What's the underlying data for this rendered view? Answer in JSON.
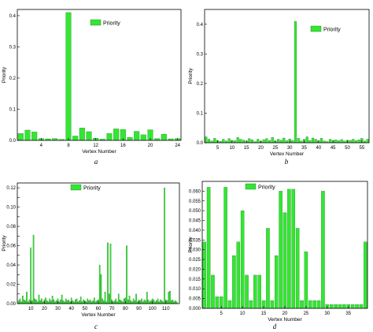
{
  "colors": {
    "bar_fill": "#33e633",
    "bar_stroke": "#1f7a1f",
    "axis": "#000000"
  },
  "chart_data": [
    {
      "id": "a",
      "type": "bar",
      "caption": "a",
      "xlabel": "Vertex Number",
      "ylabel": "Priority",
      "legend": {
        "label": "Priority",
        "placement": "top-right"
      },
      "xlim": [
        0.5,
        24.5
      ],
      "ylim": [
        0,
        0.42
      ],
      "xticks": [
        4,
        8,
        12,
        16,
        20,
        24
      ],
      "yticks": [
        0.0,
        0.1,
        0.2,
        0.3,
        0.4
      ],
      "ytick_labels": [
        "0.0",
        "0.1",
        "0.2",
        "0.3",
        "0.4"
      ],
      "x": [
        1,
        2,
        3,
        4,
        5,
        6,
        7,
        8,
        9,
        10,
        11,
        12,
        13,
        14,
        15,
        16,
        17,
        18,
        19,
        20,
        21,
        22,
        23,
        24
      ],
      "values": [
        0.022,
        0.033,
        0.027,
        0.006,
        0.005,
        0.006,
        0.003,
        0.41,
        0.014,
        0.04,
        0.028,
        0.007,
        0.004,
        0.022,
        0.037,
        0.035,
        0.01,
        0.029,
        0.018,
        0.034,
        0.006,
        0.02,
        0.005,
        0.006
      ]
    },
    {
      "id": "b",
      "type": "bar",
      "caption": "b",
      "xlabel": "Vertex Number",
      "ylabel": "Priority",
      "legend": {
        "label": "Priority",
        "placement": "top-right"
      },
      "xlim": [
        0.5,
        57.5
      ],
      "ylim": [
        0,
        0.45
      ],
      "xticks": [
        5,
        10,
        15,
        20,
        25,
        30,
        35,
        40,
        45,
        50,
        55
      ],
      "yticks": [
        0.0,
        0.1,
        0.2,
        0.3,
        0.4
      ],
      "ytick_labels": [
        "0.0",
        "0.1",
        "0.2",
        "0.3",
        "0.4"
      ],
      "x": [
        1,
        2,
        3,
        4,
        5,
        6,
        7,
        8,
        9,
        10,
        11,
        12,
        13,
        14,
        15,
        16,
        17,
        18,
        19,
        20,
        21,
        22,
        23,
        24,
        25,
        26,
        27,
        28,
        29,
        30,
        31,
        32,
        33,
        34,
        35,
        36,
        37,
        38,
        39,
        40,
        41,
        42,
        43,
        44,
        45,
        46,
        47,
        48,
        49,
        50,
        51,
        52,
        53,
        54,
        55,
        56,
        57
      ],
      "values": [
        0.02,
        0.012,
        0.006,
        0.015,
        0.008,
        0.005,
        0.012,
        0.006,
        0.014,
        0.008,
        0.007,
        0.018,
        0.012,
        0.009,
        0.006,
        0.014,
        0.01,
        0.004,
        0.012,
        0.005,
        0.01,
        0.014,
        0.008,
        0.018,
        0.006,
        0.012,
        0.009,
        0.016,
        0.007,
        0.013,
        0.008,
        0.41,
        0.015,
        0.006,
        0.012,
        0.02,
        0.008,
        0.016,
        0.012,
        0.007,
        0.015,
        0.006,
        0.004,
        0.012,
        0.008,
        0.01,
        0.007,
        0.011,
        0.006,
        0.009,
        0.008,
        0.012,
        0.007,
        0.01,
        0.015,
        0.006,
        0.012
      ]
    },
    {
      "id": "c",
      "type": "bar",
      "caption": "c",
      "xlabel": "Vertex Number",
      "ylabel": "Priority",
      "legend": {
        "label": "Priority",
        "placement": "top-left"
      },
      "xlim": [
        0,
        120
      ],
      "ylim": [
        0,
        0.125
      ],
      "xticks": [
        10,
        20,
        30,
        40,
        50,
        60,
        70,
        80,
        90,
        100,
        110
      ],
      "yticks": [
        0.0,
        0.01,
        0.02,
        0.03,
        0.04,
        0.05,
        0.06,
        0.07,
        0.08,
        0.09,
        0.1,
        0.11,
        0.12
      ],
      "ytick_labels": [
        "0.00",
        "",
        "0.02",
        "",
        "0.04",
        "",
        "0.06",
        "",
        "0.08",
        "",
        "0.10",
        "",
        "0.12"
      ],
      "x": [
        1,
        2,
        3,
        4,
        5,
        6,
        7,
        8,
        9,
        10,
        11,
        12,
        13,
        14,
        15,
        16,
        17,
        18,
        19,
        20,
        21,
        22,
        23,
        24,
        25,
        26,
        27,
        28,
        29,
        30,
        31,
        32,
        33,
        34,
        35,
        36,
        37,
        38,
        39,
        40,
        41,
        42,
        43,
        44,
        45,
        46,
        47,
        48,
        49,
        50,
        51,
        52,
        53,
        54,
        55,
        56,
        57,
        58,
        59,
        60,
        61,
        62,
        63,
        64,
        65,
        66,
        67,
        68,
        69,
        70,
        71,
        72,
        73,
        74,
        75,
        76,
        77,
        78,
        79,
        80,
        81,
        82,
        83,
        84,
        85,
        86,
        87,
        88,
        89,
        90,
        91,
        92,
        93,
        94,
        95,
        96,
        97,
        98,
        99,
        100,
        101,
        102,
        103,
        104,
        105,
        106,
        107,
        108,
        109,
        110,
        111,
        112,
        113,
        114,
        115,
        116,
        117,
        118
      ],
      "values": [
        0.003,
        0.005,
        0.002,
        0.008,
        0.004,
        0.003,
        0.012,
        0.002,
        0.004,
        0.058,
        0.003,
        0.071,
        0.005,
        0.004,
        0.002,
        0.009,
        0.003,
        0.005,
        0.002,
        0.004,
        0.006,
        0.003,
        0.002,
        0.005,
        0.003,
        0.008,
        0.004,
        0.002,
        0.003,
        0.005,
        0.002,
        0.004,
        0.009,
        0.003,
        0.002,
        0.005,
        0.003,
        0.004,
        0.002,
        0.006,
        0.003,
        0.002,
        0.004,
        0.005,
        0.002,
        0.003,
        0.007,
        0.002,
        0.004,
        0.003,
        0.002,
        0.005,
        0.003,
        0.004,
        0.002,
        0.003,
        0.006,
        0.002,
        0.003,
        0.004,
        0.04,
        0.03,
        0.005,
        0.003,
        0.012,
        0.002,
        0.063,
        0.01,
        0.062,
        0.004,
        0.002,
        0.003,
        0.005,
        0.002,
        0.01,
        0.004,
        0.003,
        0.002,
        0.005,
        0.006,
        0.06,
        0.004,
        0.008,
        0.003,
        0.002,
        0.005,
        0.003,
        0.01,
        0.002,
        0.004,
        0.003,
        0.005,
        0.002,
        0.004,
        0.003,
        0.012,
        0.004,
        0.002,
        0.003,
        0.005,
        0.004,
        0.002,
        0.003,
        0.005,
        0.002,
        0.004,
        0.003,
        0.002,
        0.12,
        0.004,
        0.003,
        0.012,
        0.013,
        0.003,
        0.004,
        0.002,
        0.003,
        0.002
      ]
    },
    {
      "id": "d",
      "type": "bar",
      "caption": "d",
      "xlabel": "Vertex Number",
      "ylabel": "Priority",
      "legend": {
        "label": "Priority",
        "placement": "top-center"
      },
      "xlim": [
        0.5,
        39.5
      ],
      "ylim": [
        0,
        0.065
      ],
      "xticks": [
        5,
        10,
        15,
        20,
        25,
        30,
        35
      ],
      "yticks": [
        0.0,
        0.005,
        0.01,
        0.015,
        0.02,
        0.025,
        0.03,
        0.035,
        0.04,
        0.045,
        0.05,
        0.055,
        0.06
      ],
      "ytick_labels": [
        "0.000",
        "0.005",
        "0.010",
        "0.015",
        "0.020",
        "0.025",
        "0.030",
        "0.035",
        "0.040",
        "0.045",
        "0.050",
        "0.055",
        "0.060"
      ],
      "x": [
        1,
        2,
        3,
        4,
        5,
        6,
        7,
        8,
        9,
        10,
        11,
        12,
        13,
        14,
        15,
        16,
        17,
        18,
        19,
        20,
        21,
        22,
        23,
        24,
        25,
        26,
        27,
        28,
        29,
        30,
        31,
        32,
        33,
        34,
        35,
        36,
        37,
        38,
        39
      ],
      "values": [
        0.034,
        0.062,
        0.017,
        0.006,
        0.006,
        0.062,
        0.004,
        0.027,
        0.034,
        0.05,
        0.017,
        0.004,
        0.017,
        0.017,
        0.004,
        0.041,
        0.004,
        0.027,
        0.06,
        0.049,
        0.061,
        0.061,
        0.041,
        0.004,
        0.029,
        0.004,
        0.004,
        0.004,
        0.06,
        0.002,
        0.002,
        0.002,
        0.002,
        0.002,
        0.002,
        0.002,
        0.002,
        0.002,
        0.034
      ]
    }
  ]
}
